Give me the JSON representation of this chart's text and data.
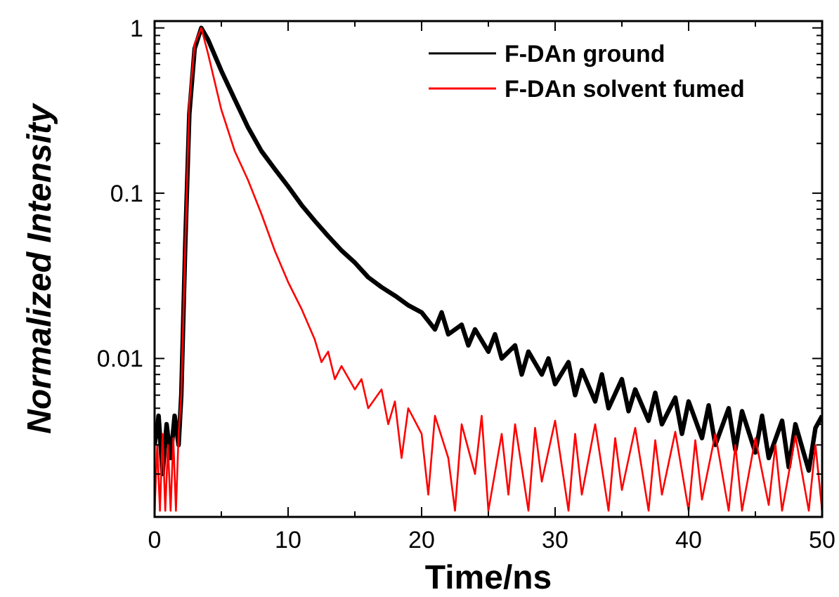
{
  "chart_data": {
    "type": "line",
    "xlabel": "Time/ns",
    "ylabel": "Normalized Intensity",
    "log": "y",
    "xlim": [
      0,
      50
    ],
    "ylim": [
      0.0011,
      1.1
    ],
    "xticks": [
      0,
      {
        "value": 5,
        "label": null
      },
      10,
      {
        "value": 15,
        "label": null
      },
      20,
      {
        "value": 25,
        "label": null
      },
      30,
      {
        "value": 35,
        "label": null
      },
      40,
      {
        "value": 45,
        "label": null
      },
      50
    ],
    "yticks": [
      {
        "value": 0.002,
        "label": null
      },
      {
        "value": 0.003,
        "label": null
      },
      {
        "value": 0.004,
        "label": null
      },
      {
        "value": 0.005,
        "label": null
      },
      {
        "value": 0.006,
        "label": null
      },
      {
        "value": 0.007,
        "label": null
      },
      {
        "value": 0.008,
        "label": null
      },
      {
        "value": 0.009,
        "label": null
      },
      0.01,
      {
        "value": 0.02,
        "label": null
      },
      {
        "value": 0.03,
        "label": null
      },
      {
        "value": 0.04,
        "label": null
      },
      {
        "value": 0.05,
        "label": null
      },
      {
        "value": 0.06,
        "label": null
      },
      {
        "value": 0.07,
        "label": null
      },
      {
        "value": 0.08,
        "label": null
      },
      {
        "value": 0.09,
        "label": null
      },
      0.1,
      {
        "value": 0.2,
        "label": null
      },
      {
        "value": 0.3,
        "label": null
      },
      {
        "value": 0.4,
        "label": null
      },
      {
        "value": 0.5,
        "label": null
      },
      {
        "value": 0.6,
        "label": null
      },
      {
        "value": 0.7,
        "label": null
      },
      {
        "value": 0.8,
        "label": null
      },
      {
        "value": 0.9,
        "label": null
      },
      1
    ],
    "grid": false,
    "legend": "top right",
    "marker": "none",
    "line_style": "solid",
    "series": [
      {
        "name": "F-DAn ground",
        "color": "#000000",
        "x": [
          0,
          0.3,
          0.6,
          0.9,
          1.2,
          1.5,
          1.8,
          2.0,
          2.3,
          2.6,
          3.0,
          3.5,
          4,
          5,
          6,
          7,
          8,
          9,
          10,
          11,
          12,
          13,
          14,
          15,
          16,
          17,
          18,
          19,
          20,
          21,
          21.5,
          22,
          23,
          23.5,
          24,
          25,
          25.5,
          26,
          27,
          27.5,
          28,
          29,
          29.5,
          30,
          31,
          31.5,
          32,
          33,
          33.5,
          34,
          35,
          35.5,
          36,
          37,
          37.5,
          38,
          39,
          39.5,
          40,
          41,
          41.5,
          42,
          43,
          43.5,
          44,
          45,
          45.5,
          46,
          47,
          47.5,
          48,
          49,
          49.5,
          50
        ],
        "values": [
          0.003,
          0.0045,
          0.002,
          0.004,
          0.0025,
          0.0045,
          0.003,
          0.006,
          0.05,
          0.3,
          0.75,
          1.0,
          0.85,
          0.55,
          0.37,
          0.25,
          0.18,
          0.14,
          0.11,
          0.085,
          0.068,
          0.055,
          0.045,
          0.038,
          0.031,
          0.027,
          0.024,
          0.021,
          0.019,
          0.015,
          0.019,
          0.014,
          0.016,
          0.012,
          0.015,
          0.011,
          0.014,
          0.01,
          0.012,
          0.008,
          0.011,
          0.008,
          0.01,
          0.007,
          0.0095,
          0.006,
          0.0085,
          0.0055,
          0.008,
          0.005,
          0.0075,
          0.0048,
          0.0065,
          0.0042,
          0.0062,
          0.004,
          0.0058,
          0.0035,
          0.0055,
          0.0033,
          0.0052,
          0.003,
          0.005,
          0.0028,
          0.0048,
          0.0027,
          0.0045,
          0.0025,
          0.0042,
          0.0022,
          0.004,
          0.0021,
          0.0038,
          0.0045
        ]
      },
      {
        "name": "F-DAn solvent fumed",
        "color": "#ff0000",
        "x": [
          0,
          0.2,
          0.4,
          0.6,
          0.8,
          1.0,
          1.2,
          1.4,
          1.6,
          1.8,
          2.0,
          2.3,
          2.6,
          3.0,
          3.5,
          4,
          5,
          6,
          7,
          8,
          9,
          10,
          11,
          12,
          12.5,
          13,
          13.5,
          14,
          15,
          15.5,
          16,
          17,
          17.5,
          18,
          18.5,
          19,
          20,
          20.5,
          21,
          22,
          22.5,
          23,
          24,
          24.5,
          25,
          26,
          26.5,
          27,
          28,
          28.5,
          29,
          30,
          31,
          31.5,
          32,
          33,
          34,
          34.5,
          35,
          36,
          37,
          37.5,
          38,
          39,
          40,
          40.5,
          41,
          42,
          43,
          43.5,
          44,
          45,
          46,
          46.5,
          47,
          48,
          49,
          49.5,
          50
        ],
        "values": [
          0.0012,
          0.003,
          0.0012,
          0.0035,
          0.0012,
          0.003,
          0.0012,
          0.0033,
          0.0012,
          0.0035,
          0.006,
          0.05,
          0.35,
          0.8,
          1.0,
          0.7,
          0.32,
          0.18,
          0.12,
          0.075,
          0.045,
          0.029,
          0.02,
          0.013,
          0.0095,
          0.011,
          0.0075,
          0.009,
          0.0065,
          0.0075,
          0.005,
          0.0065,
          0.004,
          0.0055,
          0.0025,
          0.005,
          0.0035,
          0.0015,
          0.0045,
          0.0025,
          0.0012,
          0.004,
          0.002,
          0.0045,
          0.0012,
          0.0035,
          0.0015,
          0.004,
          0.0012,
          0.0038,
          0.0018,
          0.0042,
          0.0012,
          0.0035,
          0.0015,
          0.004,
          0.0012,
          0.0033,
          0.0016,
          0.0038,
          0.0012,
          0.0032,
          0.0015,
          0.0036,
          0.0012,
          0.0032,
          0.0014,
          0.0035,
          0.0012,
          0.003,
          0.0012,
          0.0033,
          0.0013,
          0.003,
          0.0012,
          0.0034,
          0.0012,
          0.003,
          0.0012
        ]
      }
    ]
  }
}
